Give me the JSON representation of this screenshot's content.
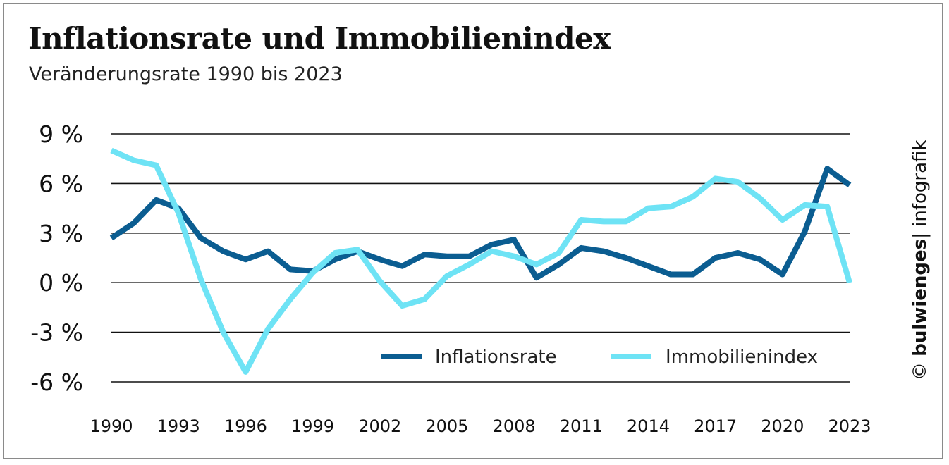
{
  "title": "Inflationsrate und Immobilienindex",
  "subtitle": "Veränderungsrate 1990 bis 2023",
  "credit": {
    "copyright": "©",
    "brand": "bulwienges",
    "suffix": "| infografik"
  },
  "colors": {
    "inflation": "#0b5d91",
    "immobilien": "#6ee3f5",
    "grid": "#111111"
  },
  "chart_data": {
    "type": "line",
    "title": "Inflationsrate und Immobilienindex",
    "subtitle": "Veränderungsrate 1990 bis 2023",
    "xlabel": "",
    "ylabel": "",
    "x": [
      1990,
      1991,
      1992,
      1993,
      1994,
      1995,
      1996,
      1997,
      1998,
      1999,
      2000,
      2001,
      2002,
      2003,
      2004,
      2005,
      2006,
      2007,
      2008,
      2009,
      2010,
      2011,
      2012,
      2013,
      2014,
      2015,
      2016,
      2017,
      2018,
      2019,
      2020,
      2021,
      2022,
      2023
    ],
    "xlim": [
      1990,
      2023
    ],
    "ylim": [
      -6,
      9
    ],
    "x_ticks": [
      "1990",
      "1993",
      "1996",
      "1999",
      "2002",
      "2005",
      "2008",
      "2011",
      "2014",
      "2017",
      "2020",
      "2023"
    ],
    "y_ticks": [
      {
        "value": 9,
        "label": "9 %"
      },
      {
        "value": 6,
        "label": "6 %"
      },
      {
        "value": 3,
        "label": "3 %"
      },
      {
        "value": 0,
        "label": "0 %"
      },
      {
        "value": -3,
        "label": "-3 %"
      },
      {
        "value": -6,
        "label": "-6 %"
      }
    ],
    "grid": true,
    "legend": "bottom-right",
    "series": [
      {
        "name": "Inflationsrate",
        "color": "#0b5d91",
        "values": [
          2.7,
          3.6,
          5.0,
          4.5,
          2.7,
          1.9,
          1.4,
          1.9,
          0.8,
          0.7,
          1.4,
          1.9,
          1.4,
          1.0,
          1.7,
          1.6,
          1.6,
          2.3,
          2.6,
          0.3,
          1.1,
          2.1,
          1.9,
          1.5,
          1.0,
          0.5,
          0.5,
          1.5,
          1.8,
          1.4,
          0.5,
          3.1,
          6.9,
          5.9
        ]
      },
      {
        "name": "Immobilienindex",
        "color": "#6ee3f5",
        "values": [
          8.0,
          7.4,
          7.1,
          4.2,
          0.2,
          -3.0,
          -5.4,
          -2.8,
          -1.0,
          0.6,
          1.8,
          2.0,
          0.1,
          -1.4,
          -1.0,
          0.4,
          1.1,
          1.9,
          1.6,
          1.1,
          1.8,
          3.8,
          3.7,
          3.7,
          4.5,
          4.6,
          5.2,
          6.3,
          6.1,
          5.1,
          3.8,
          4.7,
          4.6,
          0.0
        ]
      }
    ]
  }
}
